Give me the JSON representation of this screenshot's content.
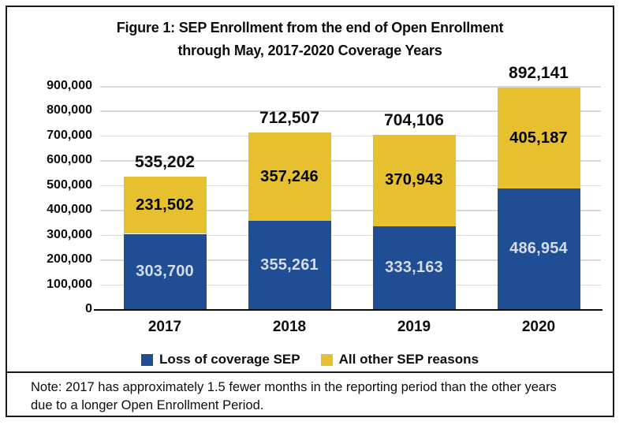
{
  "page": {
    "title_line1": "Figure 1: SEP Enrollment from the end of Open Enrollment",
    "title_line2": "through May, 2017-2020 Coverage Years",
    "note": "Note: 2017 has approximately 1.5 fewer months in the reporting period than the other years due to a longer Open Enrollment Period."
  },
  "chart_data": {
    "type": "bar",
    "stacked": true,
    "title": "Figure 1: SEP Enrollment from the end of Open Enrollment through May, 2017-2020 Coverage Years",
    "categories": [
      "2017",
      "2018",
      "2019",
      "2020"
    ],
    "series": [
      {
        "name": "Loss of coverage SEP",
        "color": "#1F4E94",
        "label_color": "#D6DCE5",
        "values": [
          303700,
          355261,
          333163,
          486954
        ],
        "value_labels": [
          "303,700",
          "355,261",
          "333,163",
          "486,954"
        ]
      },
      {
        "name": "All other SEP reasons",
        "color": "#E6C02F",
        "label_color": "#000000",
        "values": [
          231502,
          357246,
          370943,
          405187
        ],
        "value_labels": [
          "231,502",
          "357,246",
          "370,943",
          "405,187"
        ]
      }
    ],
    "totals": [
      535202,
      712507,
      704106,
      892141
    ],
    "total_labels": [
      "535,202",
      "712,507",
      "704,106",
      "892,141"
    ],
    "ylim": [
      0,
      900000
    ],
    "ytick_step": 100000,
    "ytick_labels": [
      "0",
      "100,000",
      "200,000",
      "300,000",
      "400,000",
      "500,000",
      "600,000",
      "700,000",
      "800,000",
      "900,000"
    ],
    "grid": true,
    "legend_position": "bottom",
    "axis_color": "#0d0d0d",
    "gridline_color": "#D9D9D9"
  }
}
